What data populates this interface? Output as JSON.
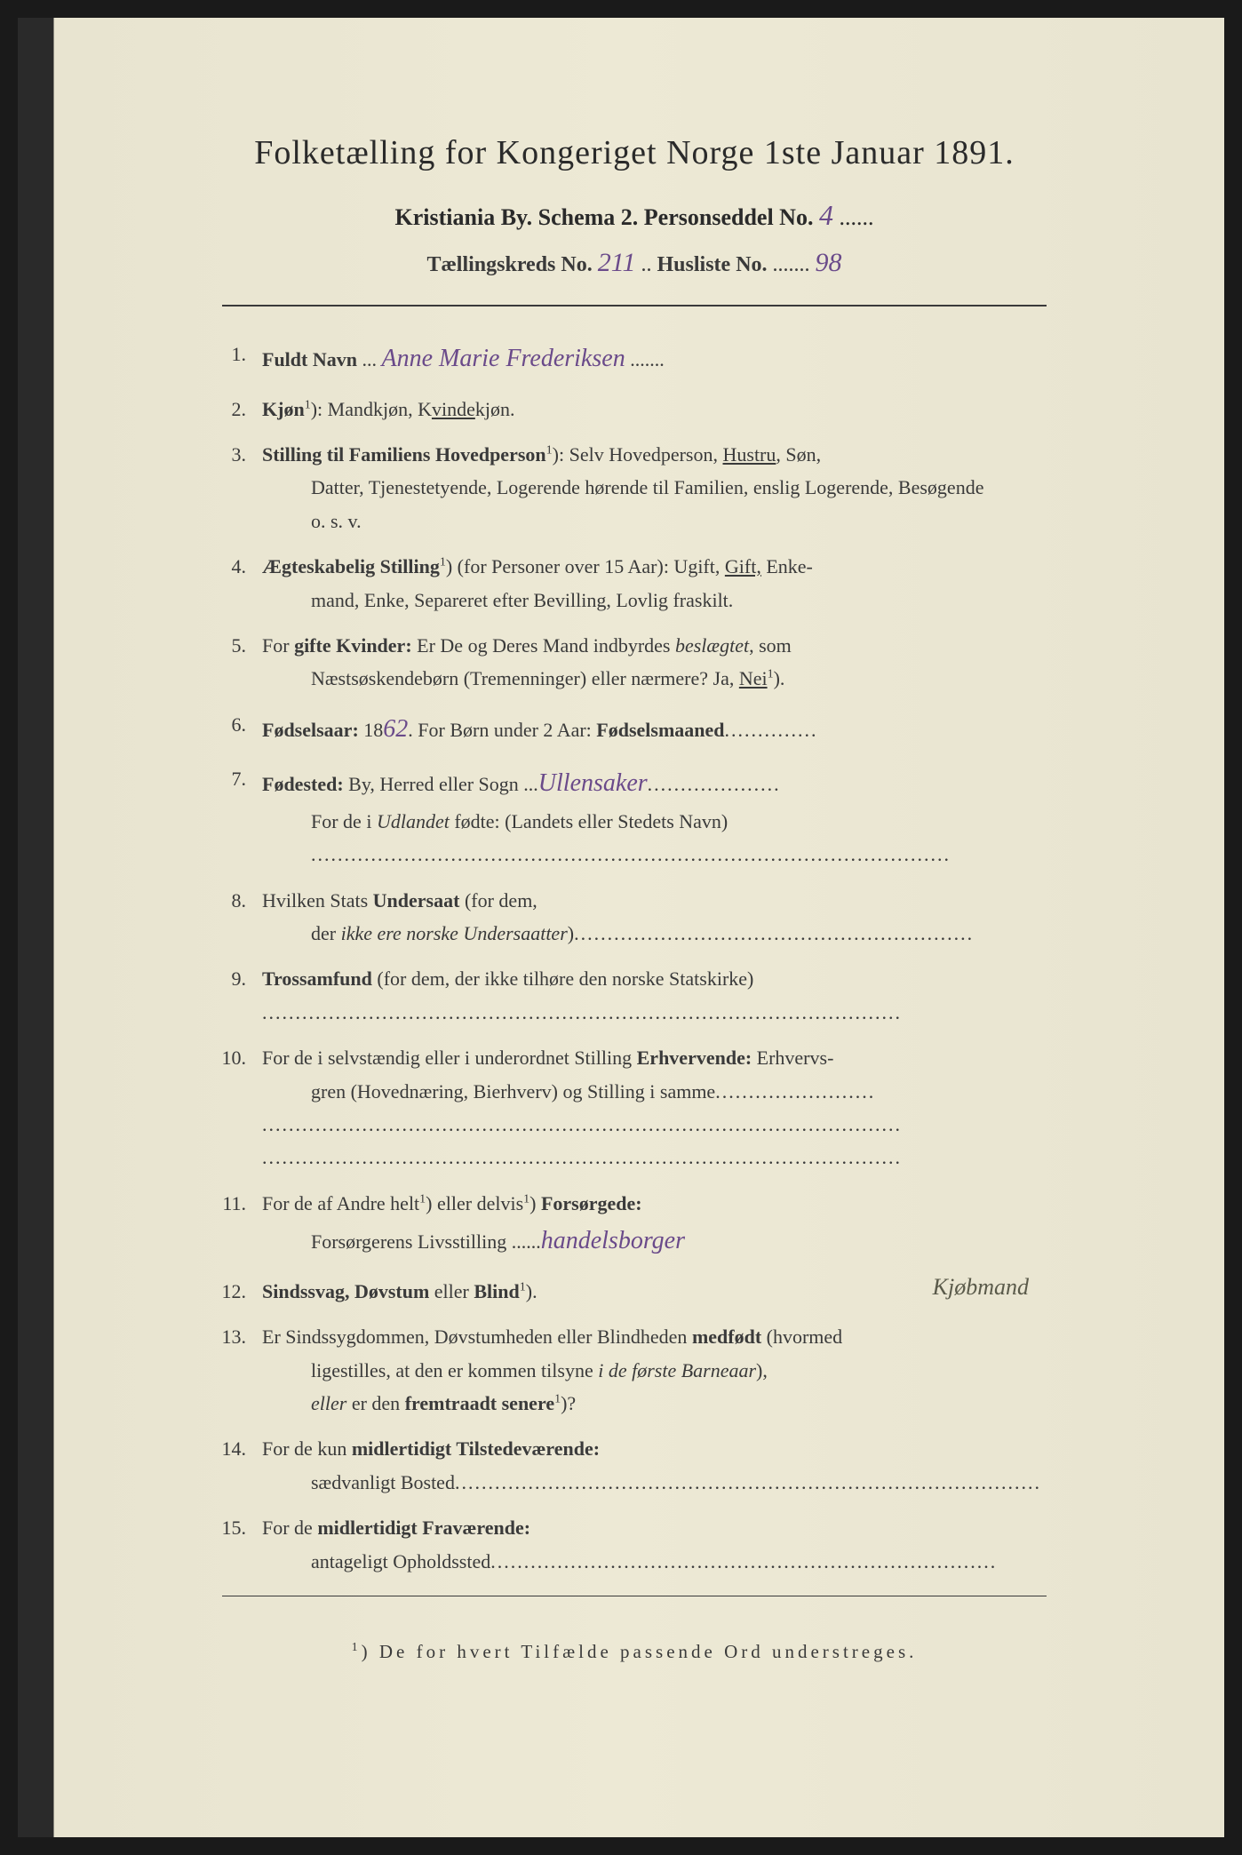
{
  "header": {
    "title": "Folketælling for Kongeriget Norge 1ste Januar 1891.",
    "line2_prefix": "Kristiania By.   Schema 2.   Personseddel No.",
    "personseddel_no": "4",
    "line3_prefix": "Tællingskreds No.",
    "kreds_no": "211",
    "line3_mid": "   Husliste No.",
    "husliste_no": "98"
  },
  "items": [
    {
      "num": "1.",
      "label": "Fuldt Navn",
      "hand": "Anne Marie Frederiksen"
    },
    {
      "num": "2.",
      "label": "Kjøn",
      "sup": "1",
      "rest": "): Mandkjøn, K",
      "under": "vinde",
      "rest2": "kjøn."
    },
    {
      "num": "3.",
      "label": "Stilling til Familiens Hovedperson",
      "sup": "1",
      "rest": "): Selv Hovedperson, ",
      "under": "Hustru",
      "rest2": ", Søn,",
      "cont": "Datter, Tjenestetyende, Logerende hørende til Familien, enslig Logerende, Besøgende",
      "cont2": "o. s. v."
    },
    {
      "num": "4.",
      "label": "Ægteskabelig Stilling",
      "sup": "1",
      "rest": ") (for Personer over 15 Aar): Ugift, ",
      "under": "Gift,",
      "rest2": " Enke-",
      "cont": "mand, Enke, Separeret efter Bevilling, Lovlig fraskilt."
    },
    {
      "num": "5.",
      "prefix": "For ",
      "label": "gifte Kvinder:",
      "rest": " Er De og Deres Mand indbyrdes ",
      "ital": "beslægtet",
      "rest2": ", som",
      "cont": "Næstsøskendebørn (Tremenninger) eller nærmere?  Ja, ",
      "cont_under": "Nei",
      "cont_sup": "1",
      "cont_rest": ")."
    },
    {
      "num": "6.",
      "label": "Fødselsaar:",
      "rest": " 18",
      "hand": "62",
      "rest2": ".    For Børn under 2 Aar: ",
      "label2": "Fødselsmaaned",
      "dotted": ".............."
    },
    {
      "num": "7.",
      "label": "Fødested:",
      "rest": " By, Herred eller Sogn ",
      "hand": "Ullensaker",
      "dotted": "....................",
      "cont": "For de i ",
      "cont_ital": "Udlandet",
      "cont_rest": " fødte: (Landets eller Stedets Navn)",
      "cont_dotted": "................................................................................................"
    },
    {
      "num": "8.",
      "prefix": "Hvilken Stats ",
      "label": "Undersaat",
      "rest": " (for dem,",
      "cont": "der ",
      "cont_ital": "ikke ere norske Undersaatter",
      "cont_rest": ")",
      "cont_dotted": "............................................................"
    },
    {
      "num": "9.",
      "label": "Trossamfund",
      "rest": "  (for dem, der ikke tilhøre den norske Statskirke)",
      "cont_dotted": "................................................................................................"
    },
    {
      "num": "10.",
      "prefix": "For de i selvstændig eller i underordnet Stilling ",
      "label": "Erhvervende:",
      "rest": " Erhvervs-",
      "cont": "gren (Hovednæring, Bierhverv) og Stilling i samme",
      "cont_dotted": "........................",
      "cont_dotted2": "................................................................................................",
      "cont_dotted3": "................................................................................................"
    },
    {
      "num": "11.",
      "prefix": "For de af Andre helt",
      "sup": "1",
      "mid": ") eller delvis",
      "sup2": "1",
      "rest": ") ",
      "label": "Forsørgede:",
      "cont": "Forsørgerens Livsstilling ",
      "cont_hand": "handelsborger",
      "cont_dotted": ""
    },
    {
      "num": "12.",
      "label": "Sindssvag, Døvstum",
      "rest": " eller ",
      "label2": "Blind",
      "sup": "1",
      "rest2": ").",
      "side_hand": "Kjøbmand"
    },
    {
      "num": "13.",
      "prefix": "Er Sindssygdommen, Døvstumheden eller Blindheden ",
      "label": "medfødt",
      "rest": " (hvormed",
      "cont": "ligestilles, at den er kommen tilsyne ",
      "cont_ital": "i de første Barneaar",
      "cont_rest": "),",
      "cont2_ital": "eller",
      "cont2_rest": " er den ",
      "cont2_label": "fremtraadt senere",
      "cont2_sup": "1",
      "cont2_rest2": ")?"
    },
    {
      "num": "14.",
      "prefix": "For de kun ",
      "label": "midlertidigt Tilstedeværende:",
      "cont": "sædvanligt Bosted",
      "cont_dotted": "........................................................................................"
    },
    {
      "num": "15.",
      "prefix": "For de ",
      "label": "midlertidigt Fraværende:",
      "cont": "antageligt Opholdssted",
      "cont_dotted": "............................................................................"
    }
  ],
  "footnote": {
    "sup": "1",
    "text": ") De for hvert Tilfælde passende Ord understreges."
  }
}
